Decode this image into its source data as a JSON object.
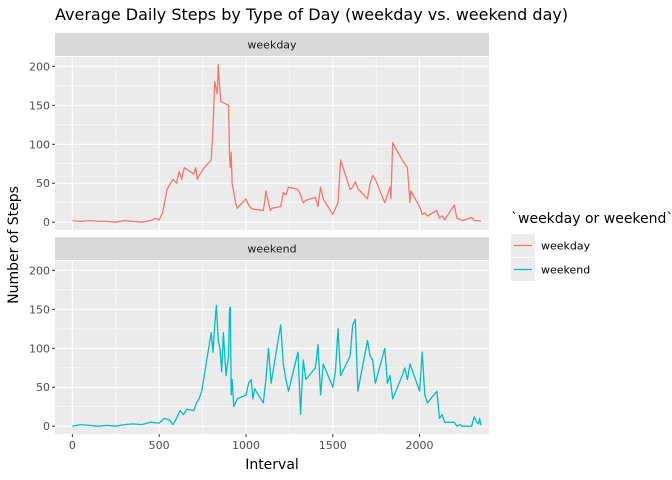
{
  "chart_data": {
    "type": "line",
    "title": "Average Daily Steps by Type of Day (weekday vs. weekend day)",
    "xlabel": "Interval",
    "ylabel": "Number of Steps",
    "xlim": [
      -100,
      2400
    ],
    "ylim": [
      -10,
      212
    ],
    "x_ticks": [
      0,
      500,
      1000,
      1500,
      2000
    ],
    "y_ticks": [
      0,
      50,
      100,
      150,
      200
    ],
    "legend": {
      "title": "`weekday or weekend`",
      "position": "right",
      "entries": [
        "weekday",
        "weekend"
      ]
    },
    "facets": [
      {
        "label": "weekday",
        "color": "#F8766D",
        "x": [
          0,
          50,
          100,
          150,
          200,
          250,
          300,
          350,
          400,
          450,
          480,
          500,
          520,
          545,
          560,
          580,
          600,
          615,
          630,
          645,
          700,
          710,
          720,
          730,
          745,
          760,
          800,
          810,
          820,
          830,
          835,
          840,
          845,
          850,
          855,
          900,
          905,
          910,
          915,
          920,
          930,
          940,
          950,
          1000,
          1015,
          1030,
          1040,
          1100,
          1110,
          1115,
          1140,
          1150,
          1200,
          1215,
          1230,
          1245,
          1300,
          1315,
          1330,
          1345,
          1400,
          1415,
          1430,
          1445,
          1500,
          1530,
          1545,
          1600,
          1615,
          1630,
          1645,
          1700,
          1715,
          1730,
          1745,
          1800,
          1830,
          1835,
          1845,
          1900,
          1915,
          1930,
          1945,
          1950,
          2000,
          2015,
          2030,
          2045,
          2100,
          2115,
          2130,
          2145,
          2200,
          2215,
          2230,
          2245,
          2300,
          2315,
          2330,
          2355
        ],
        "y": [
          2,
          1,
          2,
          1,
          1,
          0,
          2,
          1,
          0,
          2,
          5,
          3,
          12,
          42,
          48,
          55,
          50,
          65,
          55,
          70,
          62,
          70,
          55,
          60,
          65,
          70,
          80,
          120,
          180,
          170,
          165,
          202,
          185,
          170,
          155,
          150,
          85,
          70,
          90,
          50,
          38,
          25,
          18,
          30,
          22,
          18,
          17,
          15,
          30,
          40,
          15,
          18,
          20,
          38,
          35,
          45,
          42,
          35,
          25,
          28,
          32,
          20,
          45,
          30,
          10,
          25,
          80,
          42,
          45,
          52,
          43,
          30,
          50,
          60,
          55,
          25,
          45,
          30,
          102,
          80,
          75,
          70,
          25,
          40,
          20,
          10,
          12,
          8,
          15,
          5,
          8,
          3,
          22,
          5,
          4,
          2,
          6,
          2,
          2,
          1
        ]
      },
      {
        "label": "weekend",
        "color": "#00BFC4",
        "x": [
          0,
          50,
          100,
          150,
          200,
          250,
          300,
          350,
          400,
          450,
          500,
          530,
          560,
          580,
          600,
          620,
          640,
          660,
          700,
          715,
          730,
          745,
          800,
          810,
          820,
          830,
          840,
          850,
          860,
          870,
          885,
          900,
          905,
          910,
          915,
          920,
          930,
          940,
          950,
          1000,
          1015,
          1030,
          1040,
          1050,
          1100,
          1115,
          1130,
          1145,
          1200,
          1215,
          1230,
          1245,
          1300,
          1315,
          1330,
          1345,
          1400,
          1415,
          1430,
          1445,
          1500,
          1515,
          1530,
          1545,
          1600,
          1615,
          1630,
          1645,
          1700,
          1715,
          1730,
          1745,
          1800,
          1815,
          1830,
          1845,
          1900,
          1915,
          1930,
          1945,
          2000,
          2015,
          2030,
          2045,
          2100,
          2115,
          2130,
          2145,
          2200,
          2215,
          2230,
          2245,
          2300,
          2315,
          2330,
          2340,
          2345,
          2355
        ],
        "y": [
          0,
          2,
          1,
          0,
          1,
          0,
          2,
          3,
          2,
          5,
          4,
          10,
          8,
          2,
          10,
          20,
          15,
          22,
          20,
          30,
          35,
          45,
          120,
          95,
          130,
          155,
          110,
          100,
          70,
          120,
          65,
          90,
          150,
          153,
          40,
          60,
          25,
          30,
          35,
          40,
          55,
          60,
          35,
          48,
          30,
          60,
          100,
          55,
          130,
          80,
          60,
          45,
          95,
          15,
          85,
          60,
          75,
          105,
          40,
          80,
          50,
          70,
          125,
          65,
          90,
          130,
          137,
          45,
          110,
          90,
          85,
          55,
          100,
          55,
          65,
          35,
          65,
          75,
          60,
          80,
          45,
          95,
          40,
          30,
          45,
          10,
          15,
          5,
          5,
          0,
          2,
          0,
          0,
          12,
          5,
          3,
          10,
          1
        ]
      }
    ]
  }
}
